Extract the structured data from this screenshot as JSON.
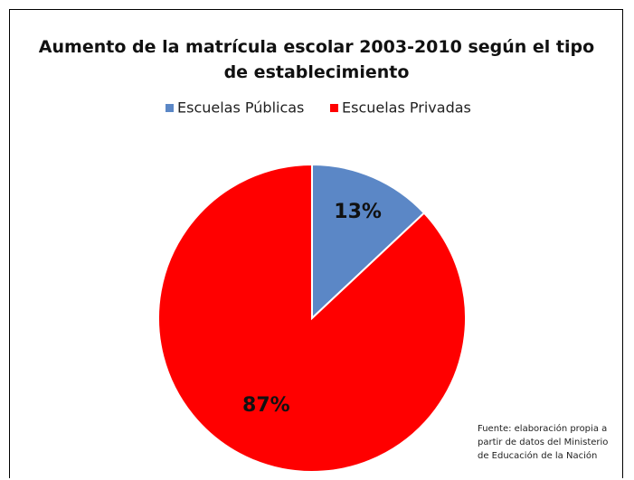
{
  "chart_data": {
    "type": "pie",
    "title": "Aumento de la matrícula escolar 2003-2010 según el tipo de establecimiento",
    "categories": [
      "Escuelas Públicas",
      "Escuelas Privadas"
    ],
    "values": [
      13,
      87
    ],
    "value_labels": [
      "13%",
      "87%"
    ],
    "colors": [
      "#5b87c6",
      "#ff0000"
    ],
    "legend": "top",
    "annotation": "Fuente: elaboración propia a partir de datos del Ministerio de Educación de la Nación"
  }
}
